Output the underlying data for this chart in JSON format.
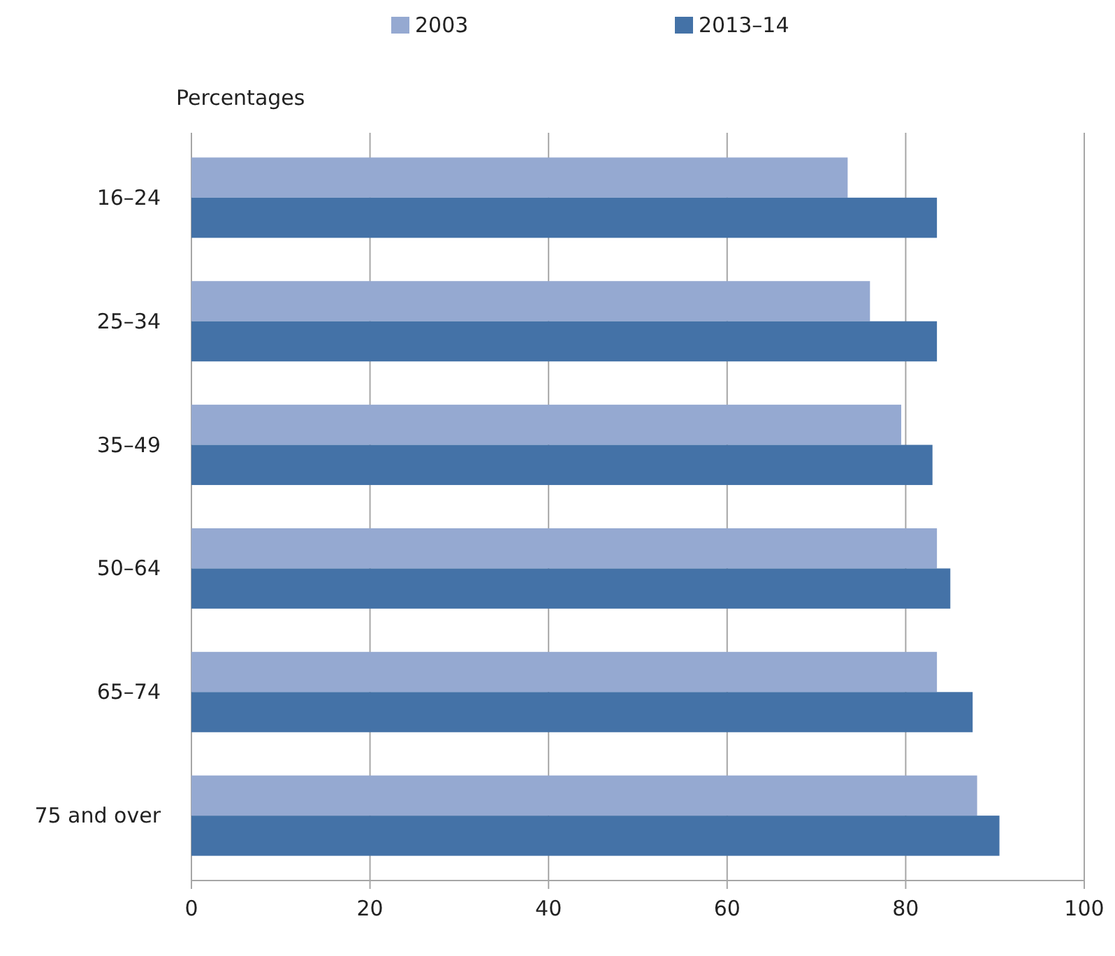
{
  "chart_data": {
    "type": "bar",
    "orientation": "horizontal",
    "ylabel": "Percentages",
    "categories": [
      "16–24",
      "25–34",
      "35–49",
      "50–64",
      "65–74",
      "75 and over"
    ],
    "series": [
      {
        "name": "2003",
        "color": "#95a9d1",
        "values": [
          73.5,
          76,
          79.5,
          83.5,
          83.5,
          88
        ]
      },
      {
        "name": "2013–14",
        "color": "#4472a7",
        "values": [
          83.5,
          83.5,
          83,
          85,
          87.5,
          90.5
        ]
      }
    ],
    "xlim": [
      0,
      100
    ],
    "xticks": [
      0,
      20,
      40,
      60,
      80,
      100
    ],
    "grid": "x",
    "legend": "top"
  }
}
